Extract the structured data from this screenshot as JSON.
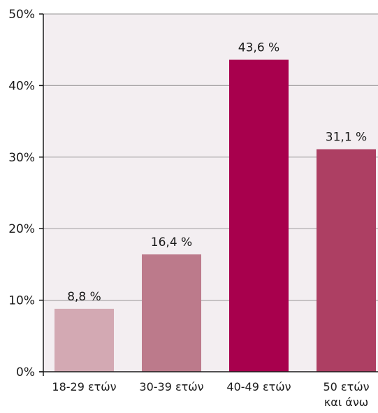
{
  "chart_data": {
    "type": "bar",
    "categories": [
      [
        "18-29 ετών"
      ],
      [
        "30-39 ετών"
      ],
      [
        "40-49 ετών"
      ],
      [
        "50 ετών",
        "και άνω"
      ]
    ],
    "values": [
      8.8,
      16.4,
      43.6,
      31.1
    ],
    "data_labels": [
      "8,8 %",
      "16,4 %",
      "43,6 %",
      "31,1 %"
    ],
    "bar_colors": [
      "#d3a9b3",
      "#bc7a8b",
      "#a8004d",
      "#ad3f63"
    ],
    "ylim": [
      0,
      50
    ],
    "yticks": [
      0,
      10,
      20,
      30,
      40,
      50
    ],
    "ytick_labels": [
      "0%",
      "10%",
      "20%",
      "30%",
      "40%",
      "50%"
    ],
    "grid": true,
    "plot_background": "#f3eef1",
    "grid_color": "#a9a6a8"
  }
}
